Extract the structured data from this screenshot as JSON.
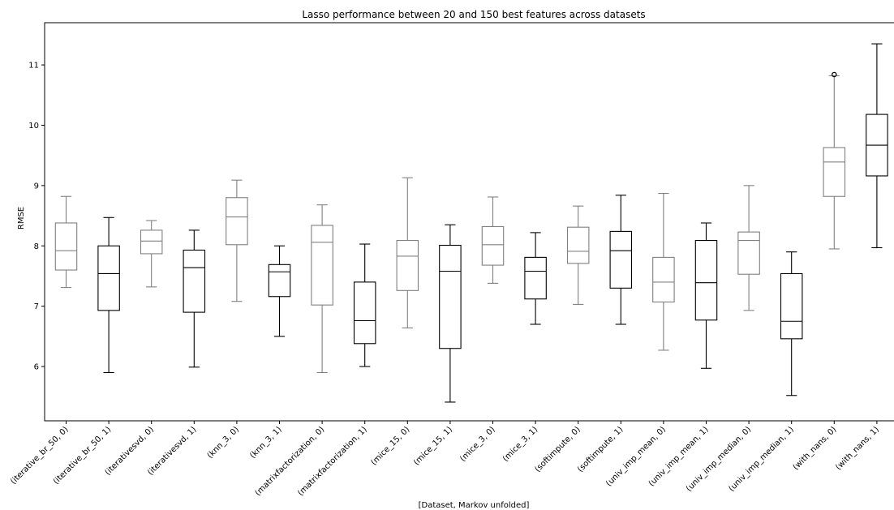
{
  "chart_data": {
    "type": "box",
    "title": "Lasso performance between 20 and 150 best features across datasets",
    "xlabel": "[Dataset, Markov unfolded]",
    "ylabel": "RMSE",
    "ylim": [
      5.1,
      11.7
    ],
    "yticks": [
      6,
      7,
      8,
      9,
      10,
      11
    ],
    "grid": false,
    "colors": {
      "gray": "#808080",
      "black": "#000000"
    },
    "boxes": [
      {
        "label": "(iterative_br_50, 0)",
        "color": "gray",
        "whislo": 7.31,
        "q1": 7.6,
        "med": 7.92,
        "q3": 8.38,
        "whishi": 8.82,
        "fliers": []
      },
      {
        "label": "(iterative_br_50, 1)",
        "color": "black",
        "whislo": 5.9,
        "q1": 6.93,
        "med": 7.54,
        "q3": 8.0,
        "whishi": 8.47,
        "fliers": []
      },
      {
        "label": "(iterativesvd, 0)",
        "color": "gray",
        "whislo": 7.32,
        "q1": 7.87,
        "med": 8.08,
        "q3": 8.26,
        "whishi": 8.42,
        "fliers": []
      },
      {
        "label": "(iterativesvd, 1)",
        "color": "black",
        "whislo": 5.99,
        "q1": 6.9,
        "med": 7.64,
        "q3": 7.93,
        "whishi": 8.26,
        "fliers": []
      },
      {
        "label": "(knn_3, 0)",
        "color": "gray",
        "whislo": 7.08,
        "q1": 8.02,
        "med": 8.48,
        "q3": 8.8,
        "whishi": 9.09,
        "fliers": []
      },
      {
        "label": "(knn_3, 1)",
        "color": "black",
        "whislo": 6.5,
        "q1": 7.16,
        "med": 7.57,
        "q3": 7.69,
        "whishi": 8.0,
        "fliers": []
      },
      {
        "label": "(matrixfactorization, 0)",
        "color": "gray",
        "whislo": 5.9,
        "q1": 7.02,
        "med": 8.06,
        "q3": 8.34,
        "whishi": 8.68,
        "fliers": []
      },
      {
        "label": "(matrixfactorization, 1)",
        "color": "black",
        "whislo": 6.0,
        "q1": 6.38,
        "med": 6.76,
        "q3": 7.4,
        "whishi": 8.03,
        "fliers": []
      },
      {
        "label": "(mice_15, 0)",
        "color": "gray",
        "whislo": 6.64,
        "q1": 7.26,
        "med": 7.83,
        "q3": 8.09,
        "whishi": 9.13,
        "fliers": []
      },
      {
        "label": "(mice_15, 1)",
        "color": "black",
        "whislo": 5.41,
        "q1": 6.3,
        "med": 7.58,
        "q3": 8.01,
        "whishi": 8.35,
        "fliers": []
      },
      {
        "label": "(mice_3, 0)",
        "color": "gray",
        "whislo": 7.38,
        "q1": 7.68,
        "med": 8.02,
        "q3": 8.32,
        "whishi": 8.81,
        "fliers": []
      },
      {
        "label": "(mice_3, 1)",
        "color": "black",
        "whislo": 6.7,
        "q1": 7.12,
        "med": 7.58,
        "q3": 7.81,
        "whishi": 8.22,
        "fliers": []
      },
      {
        "label": "(softimpute, 0)",
        "color": "gray",
        "whislo": 7.03,
        "q1": 7.71,
        "med": 7.91,
        "q3": 8.31,
        "whishi": 8.66,
        "fliers": []
      },
      {
        "label": "(softimpute, 1)",
        "color": "black",
        "whislo": 6.7,
        "q1": 7.3,
        "med": 7.92,
        "q3": 8.24,
        "whishi": 8.84,
        "fliers": []
      },
      {
        "label": "(univ_imp_mean, 0)",
        "color": "gray",
        "whislo": 6.27,
        "q1": 7.07,
        "med": 7.4,
        "q3": 7.81,
        "whishi": 8.87,
        "fliers": []
      },
      {
        "label": "(univ_imp_mean, 1)",
        "color": "black",
        "whislo": 5.97,
        "q1": 6.77,
        "med": 7.39,
        "q3": 8.09,
        "whishi": 8.38,
        "fliers": []
      },
      {
        "label": "(univ_imp_median, 0)",
        "color": "gray",
        "whislo": 6.93,
        "q1": 7.53,
        "med": 8.09,
        "q3": 8.23,
        "whishi": 9.0,
        "fliers": []
      },
      {
        "label": "(univ_imp_median, 1)",
        "color": "black",
        "whislo": 5.52,
        "q1": 6.46,
        "med": 6.75,
        "q3": 7.54,
        "whishi": 7.9,
        "fliers": []
      },
      {
        "label": "(with_nans, 0)",
        "color": "gray",
        "whislo": 7.95,
        "q1": 8.82,
        "med": 9.39,
        "q3": 9.63,
        "whishi": 10.82,
        "fliers": [
          10.84
        ]
      },
      {
        "label": "(with_nans, 1)",
        "color": "black",
        "whislo": 7.97,
        "q1": 9.16,
        "med": 9.67,
        "q3": 10.18,
        "whishi": 11.35,
        "fliers": []
      }
    ]
  }
}
